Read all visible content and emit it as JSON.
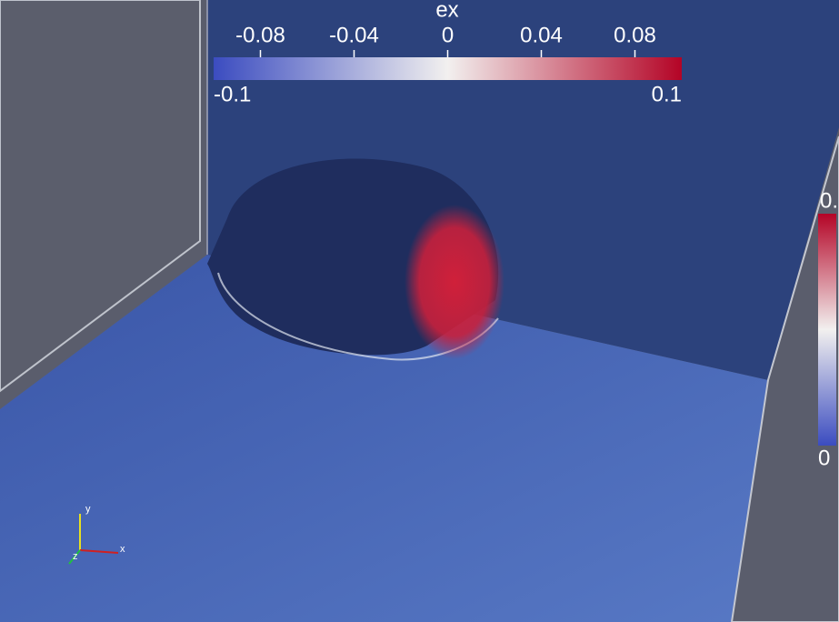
{
  "colorbar": {
    "title": "ex",
    "ticks": [
      -0.08,
      -0.04,
      0,
      0.04,
      0.08
    ],
    "range": [
      -0.1,
      0.1
    ]
  },
  "right_colorbar": {
    "top_label": "0.",
    "bottom_label": "0"
  },
  "axes_triad": {
    "x": "x",
    "y": "y",
    "z": "z"
  }
}
